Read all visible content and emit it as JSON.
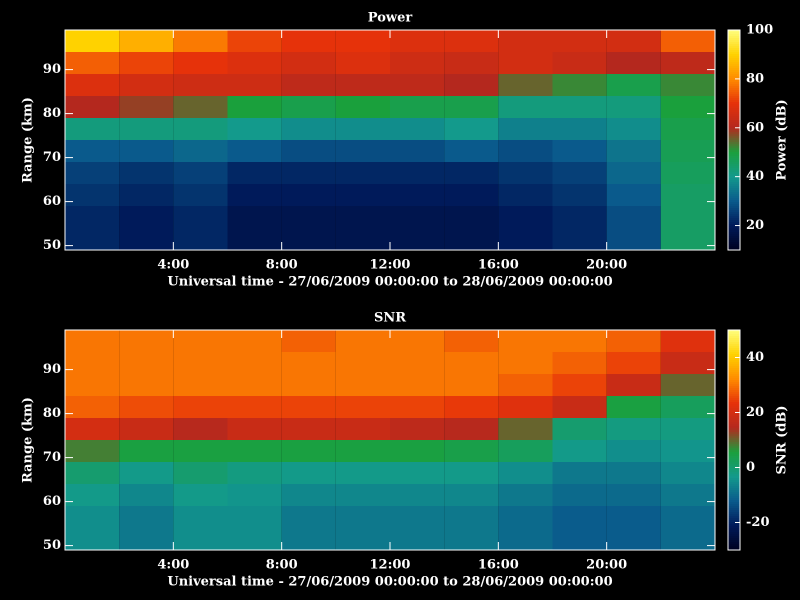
{
  "chart_data": [
    {
      "type": "heatmap",
      "title": "Power",
      "xlabel": "Universal time - 27/06/2009 00:00:00 to 28/06/2009 00:00:00",
      "ylabel": "Range (km)",
      "colorbar_label": "Power (dB)",
      "x": [
        1,
        3,
        5,
        7,
        9,
        11,
        13,
        15,
        17,
        19,
        21,
        23
      ],
      "y": [
        51.5,
        56.5,
        61.5,
        66.5,
        71.5,
        76.5,
        81.5,
        86.5,
        91.5,
        96.5
      ],
      "z": [
        [
          22,
          20,
          22,
          18,
          18,
          18,
          18,
          18,
          20,
          22,
          28,
          45
        ],
        [
          22,
          20,
          22,
          18,
          18,
          18,
          18,
          18,
          20,
          22,
          28,
          45
        ],
        [
          24,
          22,
          24,
          20,
          20,
          20,
          20,
          20,
          22,
          24,
          30,
          45
        ],
        [
          26,
          24,
          26,
          22,
          22,
          22,
          22,
          22,
          24,
          26,
          32,
          46
        ],
        [
          30,
          30,
          32,
          30,
          28,
          28,
          28,
          30,
          28,
          30,
          34,
          47
        ],
        [
          42,
          42,
          42,
          40,
          38,
          38,
          38,
          40,
          36,
          36,
          38,
          48
        ],
        [
          60,
          58,
          55,
          50,
          48,
          50,
          48,
          48,
          42,
          42,
          42,
          50
        ],
        [
          68,
          66,
          65,
          65,
          62,
          62,
          62,
          60,
          55,
          52,
          48,
          52
        ],
        [
          75,
          72,
          70,
          68,
          66,
          68,
          65,
          64,
          66,
          64,
          60,
          62
        ],
        [
          90,
          85,
          78,
          72,
          70,
          70,
          68,
          68,
          66,
          66,
          66,
          75
        ]
      ],
      "xlim": [
        0,
        24
      ],
      "xticks": [
        {
          "value": 4,
          "label": "4:00"
        },
        {
          "value": 8,
          "label": "8:00"
        },
        {
          "value": 12,
          "label": "12:00"
        },
        {
          "value": 16,
          "label": "16:00"
        },
        {
          "value": 20,
          "label": "20:00"
        }
      ],
      "ylim": [
        49,
        99
      ],
      "yticks": [
        50,
        60,
        70,
        80,
        90
      ],
      "clim": [
        10,
        100
      ],
      "cticks": [
        20,
        40,
        60,
        80,
        100
      ],
      "colormap": [
        "#000020",
        "#001a5a",
        "#0a5a8c",
        "#139a8c",
        "#1aa03c",
        "#b4281e",
        "#e6320a",
        "#ff8c00",
        "#ffd200",
        "#ffff80"
      ]
    },
    {
      "type": "heatmap",
      "title": "SNR",
      "xlabel": "Universal time - 27/06/2009 00:00:00 to 28/06/2009 00:00:00",
      "ylabel": "Range (km)",
      "colorbar_label": "SNR (dB)",
      "x": [
        1,
        3,
        5,
        7,
        9,
        11,
        13,
        15,
        17,
        19,
        21,
        23
      ],
      "y": [
        51.5,
        56.5,
        61.5,
        66.5,
        71.5,
        76.5,
        81.5,
        86.5,
        91.5,
        96.5
      ],
      "z": [
        [
          -5,
          -8,
          -5,
          -5,
          -8,
          -8,
          -8,
          -8,
          -10,
          -12,
          -12,
          -10
        ],
        [
          -5,
          -8,
          -5,
          -5,
          -8,
          -8,
          -8,
          -8,
          -10,
          -12,
          -12,
          -10
        ],
        [
          -3,
          -6,
          -3,
          -4,
          -6,
          -6,
          -6,
          -6,
          -8,
          -10,
          -10,
          -8
        ],
        [
          0,
          -3,
          0,
          -2,
          -3,
          -3,
          -3,
          -3,
          -5,
          -8,
          -8,
          -6
        ],
        [
          8,
          5,
          5,
          5,
          5,
          5,
          5,
          4,
          2,
          -3,
          -5,
          -4
        ],
        [
          20,
          18,
          15,
          18,
          18,
          18,
          16,
          15,
          10,
          0,
          -2,
          -2
        ],
        [
          28,
          26,
          25,
          25,
          25,
          25,
          25,
          24,
          22,
          18,
          5,
          2
        ],
        [
          30,
          30,
          30,
          30,
          30,
          30,
          30,
          30,
          28,
          25,
          18,
          10
        ],
        [
          30,
          30,
          30,
          30,
          30,
          30,
          30,
          30,
          30,
          28,
          25,
          18
        ],
        [
          30,
          30,
          30,
          30,
          28,
          30,
          30,
          28,
          30,
          30,
          28,
          22
        ]
      ],
      "xlim": [
        0,
        24
      ],
      "xticks": [
        {
          "value": 4,
          "label": "4:00"
        },
        {
          "value": 8,
          "label": "8:00"
        },
        {
          "value": 12,
          "label": "12:00"
        },
        {
          "value": 16,
          "label": "16:00"
        },
        {
          "value": 20,
          "label": "20:00"
        }
      ],
      "ylim": [
        49,
        99
      ],
      "yticks": [
        50,
        60,
        70,
        80,
        90
      ],
      "clim": [
        -30,
        50
      ],
      "cticks": [
        -20,
        0,
        20,
        40
      ],
      "colormap": [
        "#000020",
        "#001a5a",
        "#0a5a8c",
        "#139a8c",
        "#1aa03c",
        "#b4281e",
        "#e6320a",
        "#ff8c00",
        "#ffd200",
        "#ffff80"
      ]
    }
  ]
}
